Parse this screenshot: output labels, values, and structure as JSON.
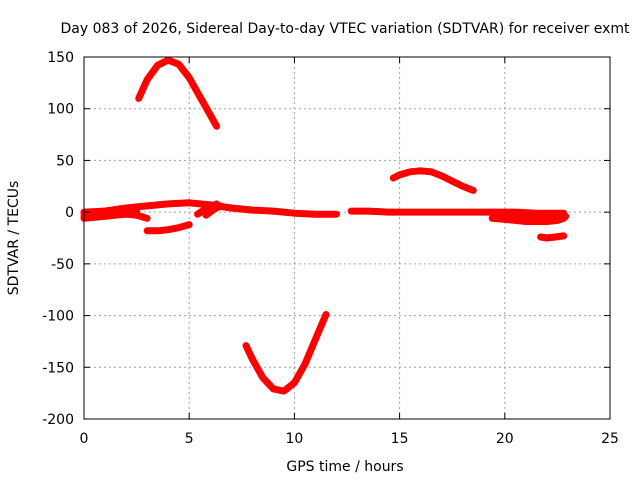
{
  "chart_data": {
    "type": "line",
    "title": "Day 083 of 2026, Sidereal Day-to-day VTEC variation (SDTVAR) for receiver exmt",
    "xlabel": "GPS time / hours",
    "ylabel": "SDTVAR / TECUs",
    "xlim": [
      0,
      25
    ],
    "ylim": [
      -200,
      150
    ],
    "xticks": [
      0,
      5,
      10,
      15,
      20,
      25
    ],
    "yticks": [
      150,
      100,
      50,
      0,
      -50,
      -100,
      -150,
      -200
    ],
    "xtick_labels": [
      "0",
      "5",
      "10",
      "15",
      "20",
      "25"
    ],
    "ytick_labels": [
      "150",
      "100",
      "50",
      "0",
      "-50",
      "-100",
      "-150",
      "-200"
    ],
    "grid": true,
    "legend": "none",
    "color": "#ff0000",
    "series": [
      {
        "name": "arc-main-low",
        "x": [
          0,
          1,
          2,
          3,
          4,
          5,
          6,
          7,
          8,
          9,
          10,
          11,
          12
        ],
        "y": [
          0,
          1,
          4,
          6,
          8,
          9,
          7,
          4,
          2,
          1,
          -1,
          -2,
          -2
        ]
      },
      {
        "name": "arc-early-1",
        "x": [
          0,
          0.5,
          1.0,
          1.5,
          2.0,
          2.5,
          3.0
        ],
        "y": [
          -6,
          -5,
          -4,
          -3,
          -2,
          -3,
          -6
        ]
      },
      {
        "name": "arc-early-2",
        "x": [
          0,
          0.5,
          1.0,
          1.5,
          2.0
        ],
        "y": [
          -1,
          0,
          1,
          2,
          3
        ]
      },
      {
        "name": "arc-early-3",
        "x": [
          0,
          0.5,
          1.0,
          1.5,
          2.0,
          2.5
        ],
        "y": [
          -4,
          -3,
          -2,
          -1,
          0,
          1
        ]
      },
      {
        "name": "arc-rise-high",
        "x": [
          2.6,
          3.0,
          3.5,
          4.0,
          4.5,
          5.0,
          5.5,
          6.0,
          6.3
        ],
        "y": [
          110,
          128,
          142,
          147,
          143,
          130,
          112,
          94,
          83
        ]
      },
      {
        "name": "arc-neg-small",
        "x": [
          3.0,
          3.5,
          4.0,
          4.5,
          5.0
        ],
        "y": [
          -18,
          -18,
          -17,
          -15,
          -12
        ]
      },
      {
        "name": "arc-loop-1",
        "x": [
          5.4,
          5.7,
          6.0,
          6.3
        ],
        "y": [
          -2,
          2,
          5,
          8
        ]
      },
      {
        "name": "arc-loop-2",
        "x": [
          5.8,
          6.0,
          6.2,
          6.5
        ],
        "y": [
          -3,
          0,
          3,
          6
        ]
      },
      {
        "name": "arc-dip-low",
        "x": [
          7.7,
          8.0,
          8.5,
          9.0,
          9.5,
          10.0,
          10.5,
          11.0,
          11.5
        ],
        "y": [
          -129,
          -142,
          -160,
          -171,
          -173,
          -165,
          -147,
          -123,
          -99
        ]
      },
      {
        "name": "arc-mid-flat",
        "x": [
          12.7,
          13.5,
          14.5,
          15.5,
          16.5,
          17.5,
          18.5,
          19.5,
          20.5,
          21.5,
          22.8
        ],
        "y": [
          1,
          1,
          0,
          0,
          0,
          0,
          0,
          0,
          0,
          -1,
          -1
        ]
      },
      {
        "name": "arc-hump",
        "x": [
          14.7,
          15.0,
          15.5,
          16.0,
          16.5,
          17.0,
          17.5,
          18.0,
          18.5
        ],
        "y": [
          33,
          36,
          39,
          40,
          39,
          35,
          30,
          25,
          21
        ]
      },
      {
        "name": "arc-late-1",
        "x": [
          19.4,
          20.0,
          20.5,
          21.0,
          21.5,
          22.0,
          22.5,
          22.8
        ],
        "y": [
          -6,
          -7,
          -8,
          -9,
          -9,
          -9,
          -8,
          -6
        ]
      },
      {
        "name": "arc-late-2",
        "x": [
          19.8,
          20.5,
          21.5,
          22.5,
          22.9
        ],
        "y": [
          -1,
          -2,
          -3,
          -4,
          -4
        ]
      },
      {
        "name": "arc-late-3",
        "x": [
          21.7,
          22.0,
          22.4,
          22.8
        ],
        "y": [
          -24,
          -25,
          -24,
          -23
        ]
      }
    ]
  }
}
